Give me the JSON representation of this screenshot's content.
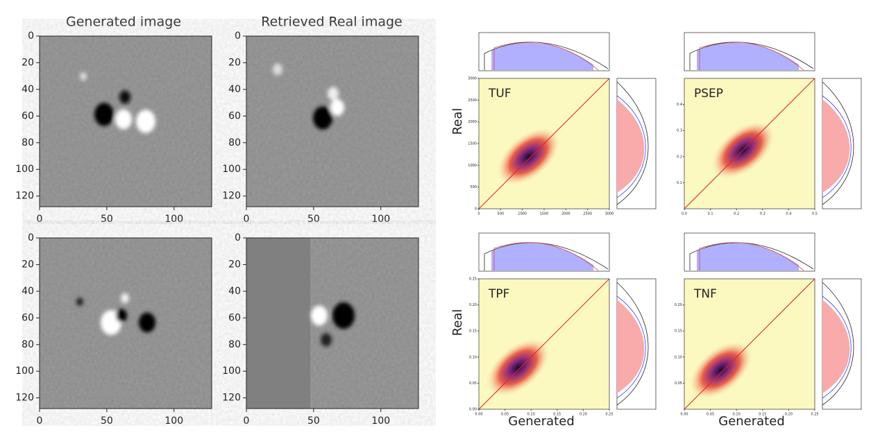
{
  "images": {
    "titles": [
      "Generated image",
      "Retrieved Real image"
    ],
    "xlim": [
      0,
      128
    ],
    "ylim": [
      128,
      0
    ],
    "xticks": [
      0,
      50,
      100
    ],
    "yticks": [
      0,
      20,
      40,
      60,
      80,
      100,
      120
    ]
  },
  "scatter": {
    "ylabel": "Real",
    "xlabel": "Generated",
    "panels": [
      {
        "label": "TUF",
        "lim": [
          0,
          3000
        ],
        "xticks": [
          0,
          500,
          1000,
          1500,
          2000,
          2500,
          3000
        ],
        "yticks": [
          0,
          500,
          1000,
          1500,
          2000,
          2500,
          3000
        ]
      },
      {
        "label": "PSEP",
        "lim": [
          0,
          0.5
        ],
        "xticks": [
          {
            "value": 0,
            "label": "0.0"
          },
          0.1,
          0.2,
          0.3,
          0.4,
          0.5
        ],
        "yticks": [
          0.1,
          0.2,
          0.3,
          0.4
        ]
      },
      {
        "label": "TPF",
        "lim": [
          0,
          0.25
        ],
        "xticks": [
          {
            "value": 0,
            "label": "0.00"
          },
          0.05,
          {
            "value": 0.1,
            "label": "0.10"
          },
          0.15,
          {
            "value": 0.2,
            "label": "0.20"
          },
          0.25
        ],
        "yticks": [
          {
            "value": 0,
            "label": "0.00"
          },
          0.05,
          {
            "value": 0.1,
            "label": "0.10"
          },
          0.15,
          {
            "value": 0.2,
            "label": "0.20"
          },
          0.25
        ]
      },
      {
        "label": "TNF",
        "lim": [
          0,
          0.25
        ],
        "xticks": [
          {
            "value": 0,
            "label": "0.00"
          },
          0.05,
          {
            "value": 0.1,
            "label": "0.10"
          },
          0.15,
          {
            "value": 0.2,
            "label": "0.20"
          },
          0.25
        ],
        "yticks": [
          0.05,
          {
            "value": 0.1,
            "label": "0.10"
          },
          0.15,
          {
            "value": 0.2,
            "label": "0.20"
          }
        ]
      }
    ]
  }
}
